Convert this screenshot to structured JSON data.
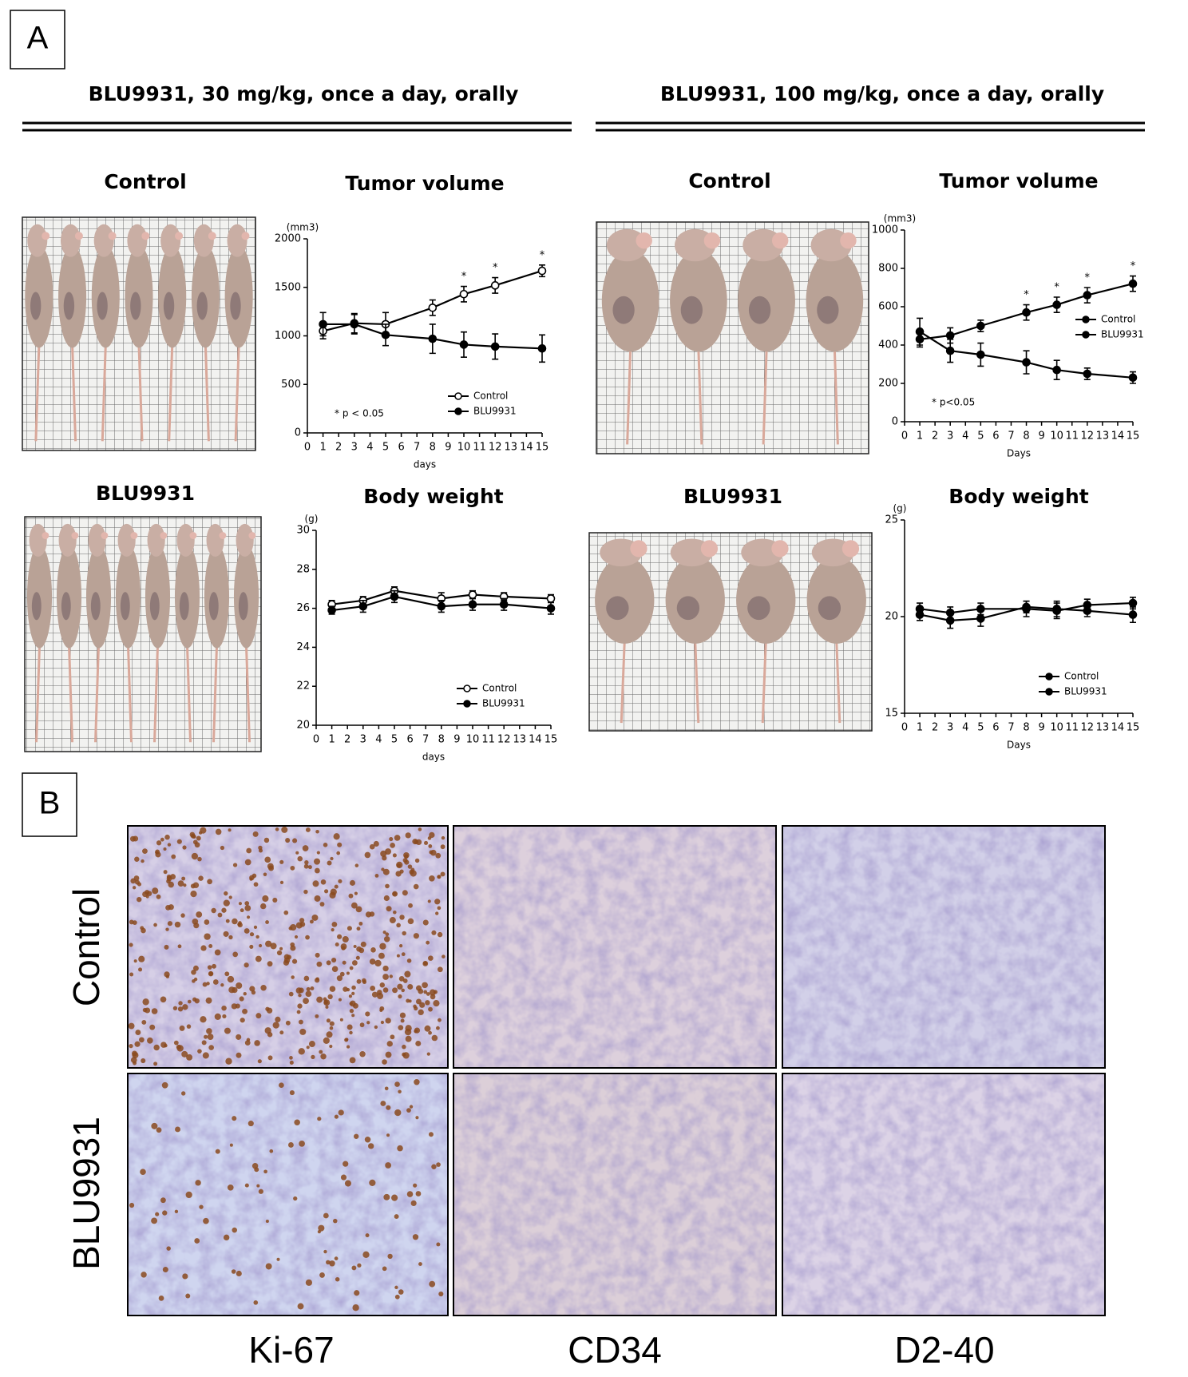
{
  "panel_a": {
    "label": "A",
    "left_header": "BLU9931, 30 mg/kg, once a day, orally",
    "right_header": "BLU9931, 100 mg/kg, once a day, orally",
    "left_control_label": "Control",
    "left_treated_label": "BLU9931",
    "right_control_label": "Control",
    "right_treated_label": "BLU9931"
  },
  "panel_b": {
    "label": "B",
    "rows": [
      "Control",
      "BLU9931"
    ],
    "columns": [
      "Ki-67",
      "CD34",
      "D2-40"
    ]
  },
  "chart_data": [
    {
      "type": "line",
      "title": "Tumor volume",
      "y_unit": "(mm3)",
      "xlabel": "days",
      "x": [
        1,
        3,
        5,
        8,
        10,
        12,
        15
      ],
      "series": [
        {
          "name": "Control",
          "color": "#000000",
          "marker": "open",
          "values": [
            1050,
            1130,
            1120,
            1290,
            1430,
            1520,
            1670
          ],
          "errors": [
            80,
            100,
            120,
            80,
            80,
            80,
            60
          ]
        },
        {
          "name": "BLU9931",
          "color": "#000000",
          "marker": "filled",
          "values": [
            1120,
            1120,
            1010,
            970,
            910,
            890,
            870
          ],
          "errors": [
            120,
            100,
            110,
            150,
            130,
            130,
            140
          ]
        }
      ],
      "xlim": [
        0,
        15
      ],
      "xticks": [
        0,
        1,
        2,
        3,
        4,
        5,
        6,
        7,
        8,
        9,
        10,
        11,
        12,
        13,
        14,
        15
      ],
      "ylim": [
        0,
        2000
      ],
      "yticks": [
        0,
        500,
        1000,
        1500,
        2000
      ],
      "legend": "lower right",
      "annotation": "* p < 0.05",
      "sig_marker": "*",
      "sig_x": [
        10,
        12,
        15
      ]
    },
    {
      "type": "line",
      "title": "Body weight",
      "y_unit": "(g)",
      "xlabel": "days",
      "x": [
        1,
        3,
        5,
        8,
        10,
        12,
        15
      ],
      "series": [
        {
          "name": "Control",
          "color": "#000000",
          "marker": "open",
          "values": [
            26.2,
            26.4,
            26.9,
            26.5,
            26.7,
            26.6,
            26.5
          ],
          "errors": [
            0.2,
            0.2,
            0.2,
            0.3,
            0.2,
            0.2,
            0.2
          ]
        },
        {
          "name": "BLU9931",
          "color": "#000000",
          "marker": "filled",
          "values": [
            25.9,
            26.1,
            26.6,
            26.1,
            26.2,
            26.2,
            26.0
          ],
          "errors": [
            0.2,
            0.3,
            0.3,
            0.3,
            0.3,
            0.3,
            0.3
          ]
        }
      ],
      "xlim": [
        0,
        15
      ],
      "xticks": [
        0,
        1,
        2,
        3,
        4,
        5,
        6,
        7,
        8,
        9,
        10,
        11,
        12,
        13,
        14,
        15
      ],
      "ylim": [
        20,
        30
      ],
      "yticks": [
        20,
        22,
        24,
        26,
        28,
        30
      ],
      "legend": "lower right"
    },
    {
      "type": "line",
      "title": "Tumor volume",
      "y_unit": "(mm3)",
      "xlabel": "Days",
      "x": [
        1,
        3,
        5,
        8,
        10,
        12,
        15
      ],
      "series": [
        {
          "name": "Control",
          "color": "#000000",
          "marker": "filled",
          "values": [
            430,
            450,
            500,
            570,
            610,
            660,
            720
          ],
          "errors": [
            40,
            40,
            30,
            40,
            40,
            40,
            40
          ]
        },
        {
          "name": "BLU9931",
          "color": "#000000",
          "marker": "filled",
          "values": [
            470,
            370,
            350,
            310,
            270,
            250,
            230
          ],
          "errors": [
            70,
            60,
            60,
            60,
            50,
            30,
            30
          ]
        }
      ],
      "xlim": [
        0,
        15
      ],
      "xticks": [
        0,
        1,
        2,
        3,
        4,
        5,
        6,
        7,
        8,
        9,
        10,
        11,
        12,
        13,
        14,
        15
      ],
      "ylim": [
        0,
        1000
      ],
      "yticks": [
        0,
        200,
        400,
        600,
        800,
        1000
      ],
      "legend": "right",
      "annotation": "* p<0.05",
      "sig_marker": "*",
      "sig_x": [
        8,
        10,
        12,
        15
      ]
    },
    {
      "type": "line",
      "title": "Body weight",
      "y_unit": "(g)",
      "xlabel": "Days",
      "x": [
        1,
        3,
        5,
        8,
        10,
        12,
        15
      ],
      "series": [
        {
          "name": "Control",
          "color": "#000000",
          "marker": "filled",
          "values": [
            20.4,
            20.2,
            20.4,
            20.4,
            20.3,
            20.6,
            20.7
          ],
          "errors": [
            0.3,
            0.3,
            0.3,
            0.4,
            0.4,
            0.3,
            0.3
          ]
        },
        {
          "name": "BLU9931",
          "color": "#000000",
          "marker": "filled",
          "values": [
            20.1,
            19.8,
            19.9,
            20.5,
            20.4,
            20.3,
            20.1
          ],
          "errors": [
            0.3,
            0.4,
            0.4,
            0.3,
            0.4,
            0.3,
            0.4
          ]
        }
      ],
      "xlim": [
        0,
        15
      ],
      "xticks": [
        0,
        1,
        2,
        3,
        4,
        5,
        6,
        7,
        8,
        9,
        10,
        11,
        12,
        13,
        14,
        15
      ],
      "ylim": [
        15,
        25
      ],
      "yticks": [
        15,
        20,
        25
      ],
      "legend": "lower right"
    }
  ]
}
